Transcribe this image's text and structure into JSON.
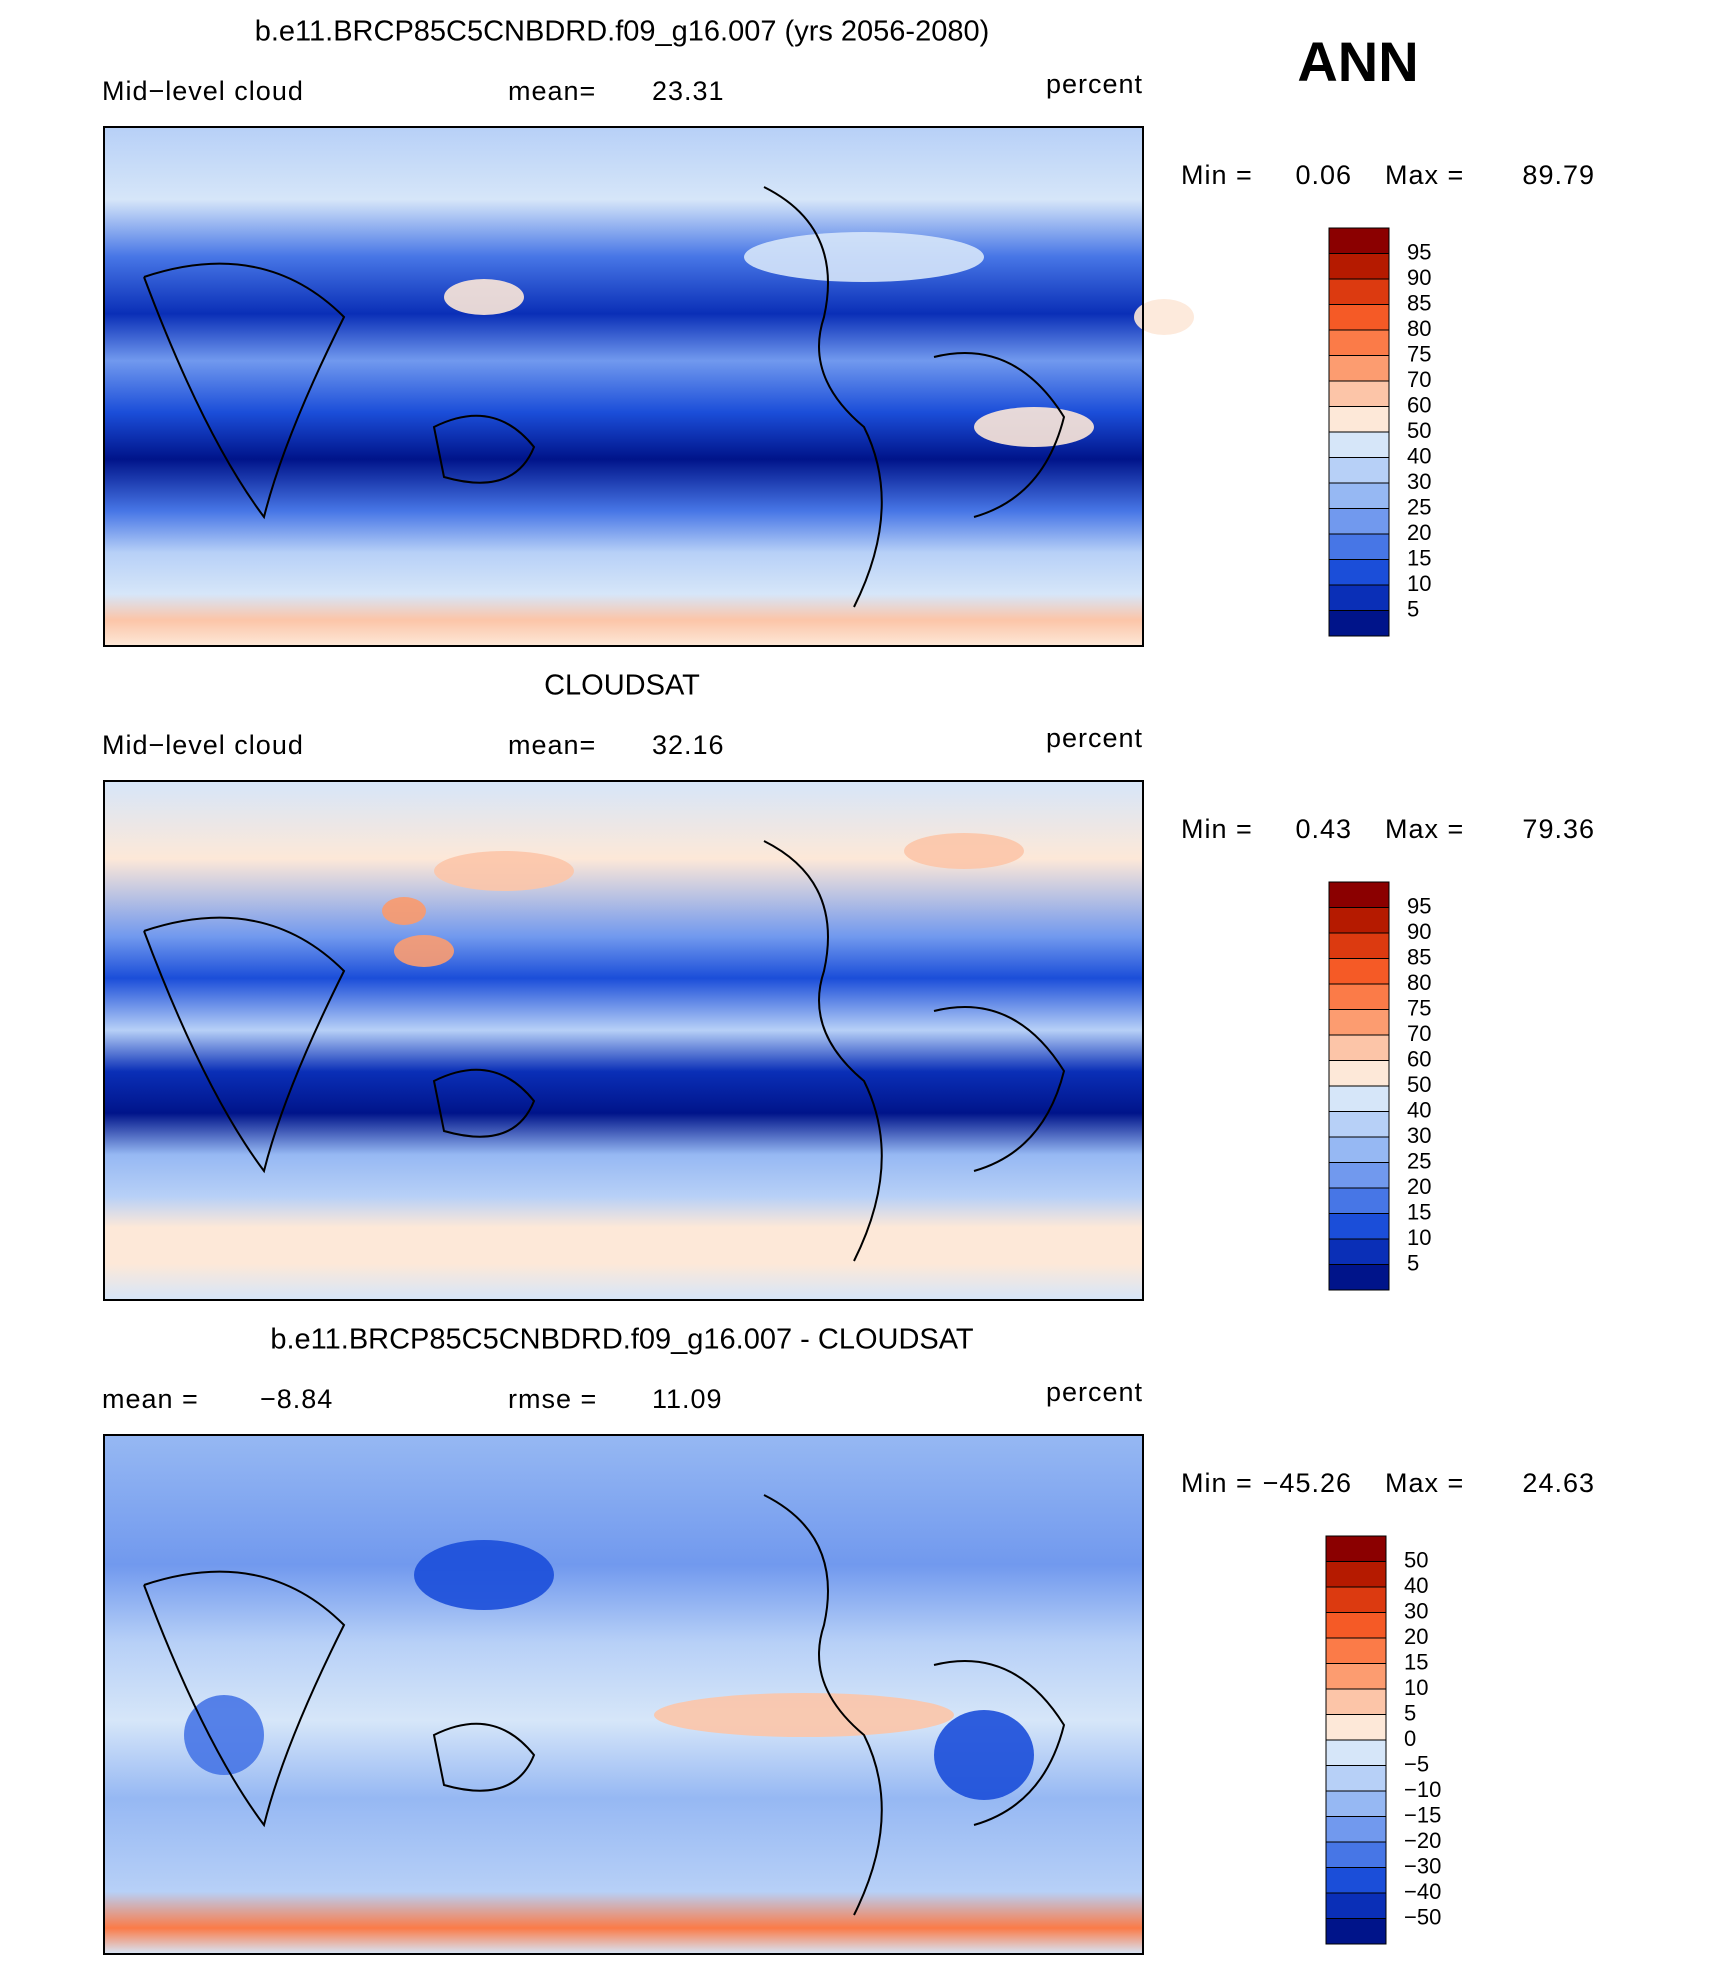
{
  "season": "ANN",
  "panels": [
    {
      "title": "b.e11.BRCP85C5CNBDRD.f09_g16.007 (yrs 2056-2080)",
      "left_label": "Mid−level cloud",
      "stat_label": "mean=",
      "stat_value": 23.31,
      "units": "percent",
      "min_label": "Min =",
      "min": 0.06,
      "max_label": "Max =",
      "max": 89.79,
      "colorbar": {
        "labels": [
          95,
          90,
          85,
          80,
          75,
          70,
          60,
          50,
          40,
          30,
          25,
          20,
          15,
          10,
          5
        ],
        "colors": [
          "#8b0000",
          "#b51a00",
          "#dc3a10",
          "#f55a26",
          "#fb7b48",
          "#fc9c70",
          "#fcc5a8",
          "#fde8d8",
          "#d6e6f9",
          "#b7d0f7",
          "#96b8f3",
          "#7199ee",
          "#4776e6",
          "#1b4ed9",
          "#0a2fb7",
          "#00148a"
        ]
      }
    },
    {
      "title": "CLOUDSAT",
      "left_label": "Mid−level cloud",
      "stat_label": "mean=",
      "stat_value": 32.16,
      "units": "percent",
      "min_label": "Min =",
      "min": 0.43,
      "max_label": "Max =",
      "max": 79.36,
      "colorbar": {
        "labels": [
          95,
          90,
          85,
          80,
          75,
          70,
          60,
          50,
          40,
          30,
          25,
          20,
          15,
          10,
          5
        ],
        "colors": [
          "#8b0000",
          "#b51a00",
          "#dc3a10",
          "#f55a26",
          "#fb7b48",
          "#fc9c70",
          "#fcc5a8",
          "#fde8d8",
          "#d6e6f9",
          "#b7d0f7",
          "#96b8f3",
          "#7199ee",
          "#4776e6",
          "#1b4ed9",
          "#0a2fb7",
          "#00148a"
        ]
      }
    },
    {
      "title": "b.e11.BRCP85C5CNBDRD.f09_g16.007 - CLOUDSAT",
      "left_label": "mean =",
      "left_value": "−8.84",
      "stat_label": "rmse =",
      "stat_value": 11.09,
      "units": "percent",
      "min_label": "Min =",
      "min": "−45.26",
      "max_label": "Max =",
      "max": 24.63,
      "colorbar": {
        "labels": [
          50,
          40,
          30,
          20,
          15,
          10,
          5,
          0,
          "−5",
          "−10",
          "−15",
          "−20",
          "−30",
          "−40",
          "−50"
        ],
        "colors": [
          "#8b0000",
          "#b51a00",
          "#dc3a10",
          "#f55a26",
          "#fb7b48",
          "#fc9c70",
          "#fcc5a8",
          "#fde8d8",
          "#d6e6f9",
          "#b7d0f7",
          "#96b8f3",
          "#7199ee",
          "#4776e6",
          "#1b4ed9",
          "#0a2fb7",
          "#00148a"
        ]
      }
    }
  ]
}
